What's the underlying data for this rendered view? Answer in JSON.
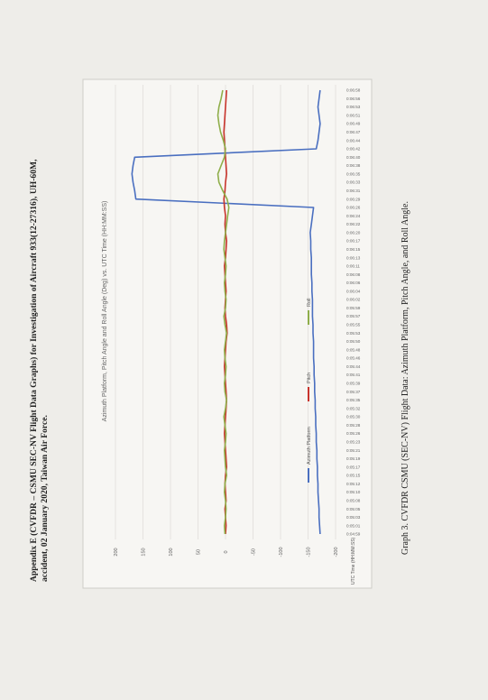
{
  "header": {
    "lines": [
      "Appendix E (CVFDR – CSMU SEC-NV Flight Data Graphs) for Investigation of Aircraft 933(12-27316), UH-60M,",
      "accident, 02 January 2020, Taiwan Air Force."
    ]
  },
  "chart_data": {
    "type": "line",
    "title": "Azimuth Platform, Pitch Angle and Roll Angle (Deg) vs. UTC Time (HH:MM:SS)",
    "x_label": "UTC Time (HH:MM:SS)",
    "categories": [
      "0:04:59",
      "0:05:01",
      "0:05:03",
      "0:05:05",
      "0:05:08",
      "0:05:10",
      "0:05:12",
      "0:05:15",
      "0:05:17",
      "0:05:19",
      "0:05:21",
      "0:05:23",
      "0:05:26",
      "0:05:28",
      "0:05:30",
      "0:05:32",
      "0:05:35",
      "0:05:37",
      "0:05:39",
      "0:05:41",
      "0:05:44",
      "0:05:46",
      "0:05:48",
      "0:05:50",
      "0:05:53",
      "0:05:55",
      "0:05:57",
      "0:05:59",
      "0:06:02",
      "0:06:04",
      "0:06:06",
      "0:06:08",
      "0:06:11",
      "0:06:13",
      "0:06:15",
      "0:06:17",
      "0:06:20",
      "0:06:22",
      "0:06:24",
      "0:06:26",
      "0:06:29",
      "0:06:31",
      "0:06:33",
      "0:06:35",
      "0:06:38",
      "0:06:40",
      "0:06:42",
      "0:06:44",
      "0:06:47",
      "0:06:49",
      "0:06:51",
      "0:06:53",
      "0:06:56",
      "0:06:58"
    ],
    "series": [
      {
        "name": "Azimuth Platform",
        "color": "#4a6fc0",
        "values": [
          -172,
          -171,
          -170,
          -170,
          -169,
          -168,
          -168,
          -167,
          -167,
          -166,
          -166,
          -165,
          -165,
          -164,
          -164,
          -163,
          -163,
          -162,
          -162,
          -161,
          -161,
          -160,
          -160,
          -160,
          -159,
          -159,
          -158,
          -158,
          -158,
          -157,
          -157,
          -156,
          -156,
          -156,
          -155,
          -155,
          -154,
          -156,
          -158,
          -160,
          163,
          165,
          168,
          170,
          168,
          165,
          -165,
          -168,
          -170,
          -172,
          -170,
          -168,
          -170,
          -172
        ]
      },
      {
        "name": "Pitch",
        "color": "#c8342c",
        "values": [
          0,
          -1,
          0,
          1,
          -1,
          0,
          1,
          0,
          -2,
          -1,
          0,
          1,
          2,
          1,
          0,
          -1,
          -2,
          -1,
          0,
          1,
          2,
          1,
          0,
          -1,
          -3,
          -2,
          0,
          1,
          0,
          -1,
          0,
          1,
          2,
          0,
          -1,
          -2,
          0,
          1,
          0,
          2,
          3,
          1,
          0,
          -2,
          -1,
          0,
          1,
          2,
          3,
          2,
          1,
          0,
          -1,
          -2
        ]
      },
      {
        "name": "Roll",
        "color": "#8fae4a",
        "values": [
          1,
          2,
          0,
          -1,
          0,
          2,
          1,
          -2,
          0,
          1,
          2,
          0,
          -1,
          1,
          3,
          0,
          -2,
          1,
          2,
          0,
          -1,
          1,
          2,
          0,
          -2,
          1,
          3,
          0,
          -1,
          1,
          2,
          0,
          -1,
          1,
          3,
          2,
          0,
          -2,
          -4,
          -6,
          -3,
          5,
          12,
          14,
          8,
          2,
          0,
          4,
          9,
          12,
          14,
          12,
          8,
          5
        ]
      }
    ],
    "ylim": [
      -200,
      200
    ],
    "yticks": [
      200,
      150,
      100,
      50,
      0,
      -50,
      -100,
      -150,
      -200
    ],
    "grid": true
  },
  "caption": "Graph 3. CVFDR CSMU (SEC-NV) Flight Data: Azimuth Platform, Pitch Angle, and Roll Angle."
}
